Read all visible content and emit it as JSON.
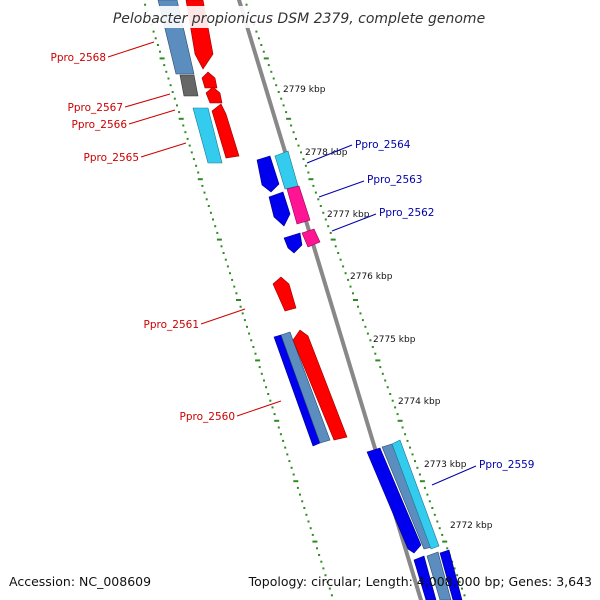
{
  "title": "Pelobacter propionicus DSM 2379, complete genome",
  "footer": {
    "accession": "Accession: NC_008609",
    "summary": "Topology: circular; Length: 4,008,000 bp; Genes: 3,643"
  },
  "colors": {
    "background": "#ffffff",
    "backbone": "#888888",
    "tick_dots": "#2e8b22",
    "left_labels": "#cc0000",
    "right_labels": "#0000aa",
    "red_gene": "#ff0000",
    "blue_gene": "#0000ee",
    "cyan_gene": "#33ccee",
    "steel_gene": "#5b8dbf",
    "magenta_gene": "#ff1493",
    "gray_gene": "#666666"
  },
  "ticks": [
    {
      "label": "2779 kbp"
    },
    {
      "label": "2778 kbp"
    },
    {
      "label": "2777 kbp"
    },
    {
      "label": "2776 kbp"
    },
    {
      "label": "2775 kbp"
    },
    {
      "label": "2774 kbp"
    },
    {
      "label": "2773 kbp"
    },
    {
      "label": "2772 kbp"
    }
  ],
  "genes_left": [
    {
      "name": "Ppro_2568"
    },
    {
      "name": "Ppro_2567"
    },
    {
      "name": "Ppro_2566"
    },
    {
      "name": "Ppro_2565"
    },
    {
      "name": "Ppro_2561"
    },
    {
      "name": "Ppro_2560"
    }
  ],
  "genes_right": [
    {
      "name": "Ppro_2564"
    },
    {
      "name": "Ppro_2563"
    },
    {
      "name": "Ppro_2562"
    },
    {
      "name": "Ppro_2559"
    }
  ]
}
